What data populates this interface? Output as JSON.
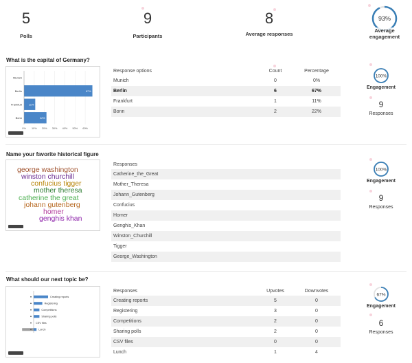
{
  "summary": {
    "polls": {
      "value": "5",
      "label": "Polls"
    },
    "participants": {
      "value": "9",
      "label": "Participants"
    },
    "avg_responses": {
      "value": "8",
      "label": "Average responses"
    },
    "avg_engagement": {
      "value": "93%",
      "label": "Average engagement",
      "fraction": 0.93
    }
  },
  "polls": [
    {
      "title": "What is the capital of Germany?",
      "columns": [
        "Response options",
        "Count",
        "Percentage"
      ],
      "rows": [
        {
          "option": "Munich",
          "count": "0",
          "pct": "0%"
        },
        {
          "option": "Berlin",
          "count": "6",
          "pct": "67%",
          "bold": true
        },
        {
          "option": "Frankfurt",
          "count": "1",
          "pct": "11%"
        },
        {
          "option": "Bonn",
          "count": "2",
          "pct": "22%"
        }
      ],
      "engagement": {
        "value": "100%",
        "label": "Engagement",
        "fraction": 1.0
      },
      "responses": {
        "value": "9",
        "label": "Responses"
      },
      "chart_data": {
        "type": "bar",
        "orientation": "horizontal",
        "categories": [
          "Munich",
          "Berlin",
          "Frankfurt",
          "Bonn"
        ],
        "values": [
          0,
          67,
          11,
          22
        ],
        "value_labels": [
          "",
          "67%",
          "11%",
          "22%"
        ],
        "xlim": [
          0,
          70
        ],
        "xticks": [
          "0%",
          "10%",
          "20%",
          "30%",
          "40%",
          "50%",
          "60%"
        ],
        "color": "#4a86c8"
      }
    },
    {
      "title": "Name your favorite historical figure",
      "columns": [
        "Responses"
      ],
      "rows": [
        {
          "option": "Catherine_the_Great"
        },
        {
          "option": "Mother_Theresa"
        },
        {
          "option": "Johann_Gutenberg"
        },
        {
          "option": "Confucius"
        },
        {
          "option": "Homer"
        },
        {
          "option": "Genghis_Khan"
        },
        {
          "option": "Winston_Churchill"
        },
        {
          "option": "Tigger"
        },
        {
          "option": "George_Washington"
        }
      ],
      "engagement": {
        "value": "100%",
        "label": "Engagement",
        "fraction": 1.0
      },
      "responses": {
        "value": "9",
        "label": "Responses"
      },
      "cloud": [
        {
          "text": "george washington",
          "color": "#a0522d"
        },
        {
          "text": "winston churchill",
          "color": "#6a2c91"
        },
        {
          "text": "confucius tigger",
          "color": "#b8860b"
        },
        {
          "text": "mother theresa",
          "color": "#2e7d32"
        },
        {
          "text": "catherine the great",
          "color": "#4caf50"
        },
        {
          "text": "johann gutenberg",
          "color": "#b5651d"
        },
        {
          "text": "homer",
          "color": "#b0399a"
        },
        {
          "text": "genghis khan",
          "color": "#8e24aa"
        }
      ]
    },
    {
      "title": "What should our next topic be?",
      "columns": [
        "Responses",
        "Upvotes",
        "Downvotes"
      ],
      "rows": [
        {
          "option": "Creating reports",
          "up": "5",
          "down": "0"
        },
        {
          "option": "Registering",
          "up": "3",
          "down": "0"
        },
        {
          "option": "Competitions",
          "up": "2",
          "down": "0"
        },
        {
          "option": "Sharing polls",
          "up": "2",
          "down": "0"
        },
        {
          "option": "CSV files",
          "up": "0",
          "down": "0"
        },
        {
          "option": "Lunch",
          "up": "1",
          "down": "4"
        }
      ],
      "engagement": {
        "value": "67%",
        "label": "Engagement",
        "fraction": 0.67
      },
      "responses": {
        "value": "6",
        "label": "Responses"
      },
      "chart_data": {
        "type": "bar",
        "orientation": "horizontal",
        "categories": [
          "Creating reports",
          "Registering",
          "Competitions",
          "Sharing polls",
          "CSV files",
          "Lunch"
        ],
        "series": [
          {
            "values": [
              5,
              3,
              2,
              2,
              0,
              1
            ]
          },
          {
            "values": [
              0,
              0,
              0,
              0,
              0,
              -4
            ]
          }
        ],
        "color": "#4a86c8"
      }
    }
  ],
  "colors": {
    "accent": "#3a7fb6",
    "ring_bg": "#e3e3e3",
    "bar": "#4a86c8"
  }
}
